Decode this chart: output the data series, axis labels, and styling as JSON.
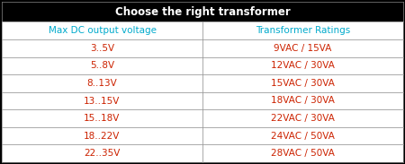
{
  "title": "Choose the right transformer",
  "title_bg": "#000000",
  "title_color": "#ffffff",
  "col_headers": [
    "Max DC output voltage",
    "Transformer Ratings"
  ],
  "col_header_color": "#00aacc",
  "col_header_bg": "#ffffff",
  "rows": [
    [
      "3..5V",
      "9VAC / 15VA"
    ],
    [
      "5..8V",
      "12VAC / 30VA"
    ],
    [
      "8..13V",
      "15VAC / 30VA"
    ],
    [
      "13..15V",
      "18VAC / 30VA"
    ],
    [
      "15..18V",
      "22VAC / 30VA"
    ],
    [
      "18..22V",
      "24VAC / 50VA"
    ],
    [
      "22..35V",
      "28VAC / 50VA"
    ]
  ],
  "row_text_color": "#cc2200",
  "row_bg": "#ffffff",
  "border_color": "#000000",
  "outer_border_color": "#888888",
  "figsize": [
    4.5,
    1.83
  ],
  "dpi": 100
}
